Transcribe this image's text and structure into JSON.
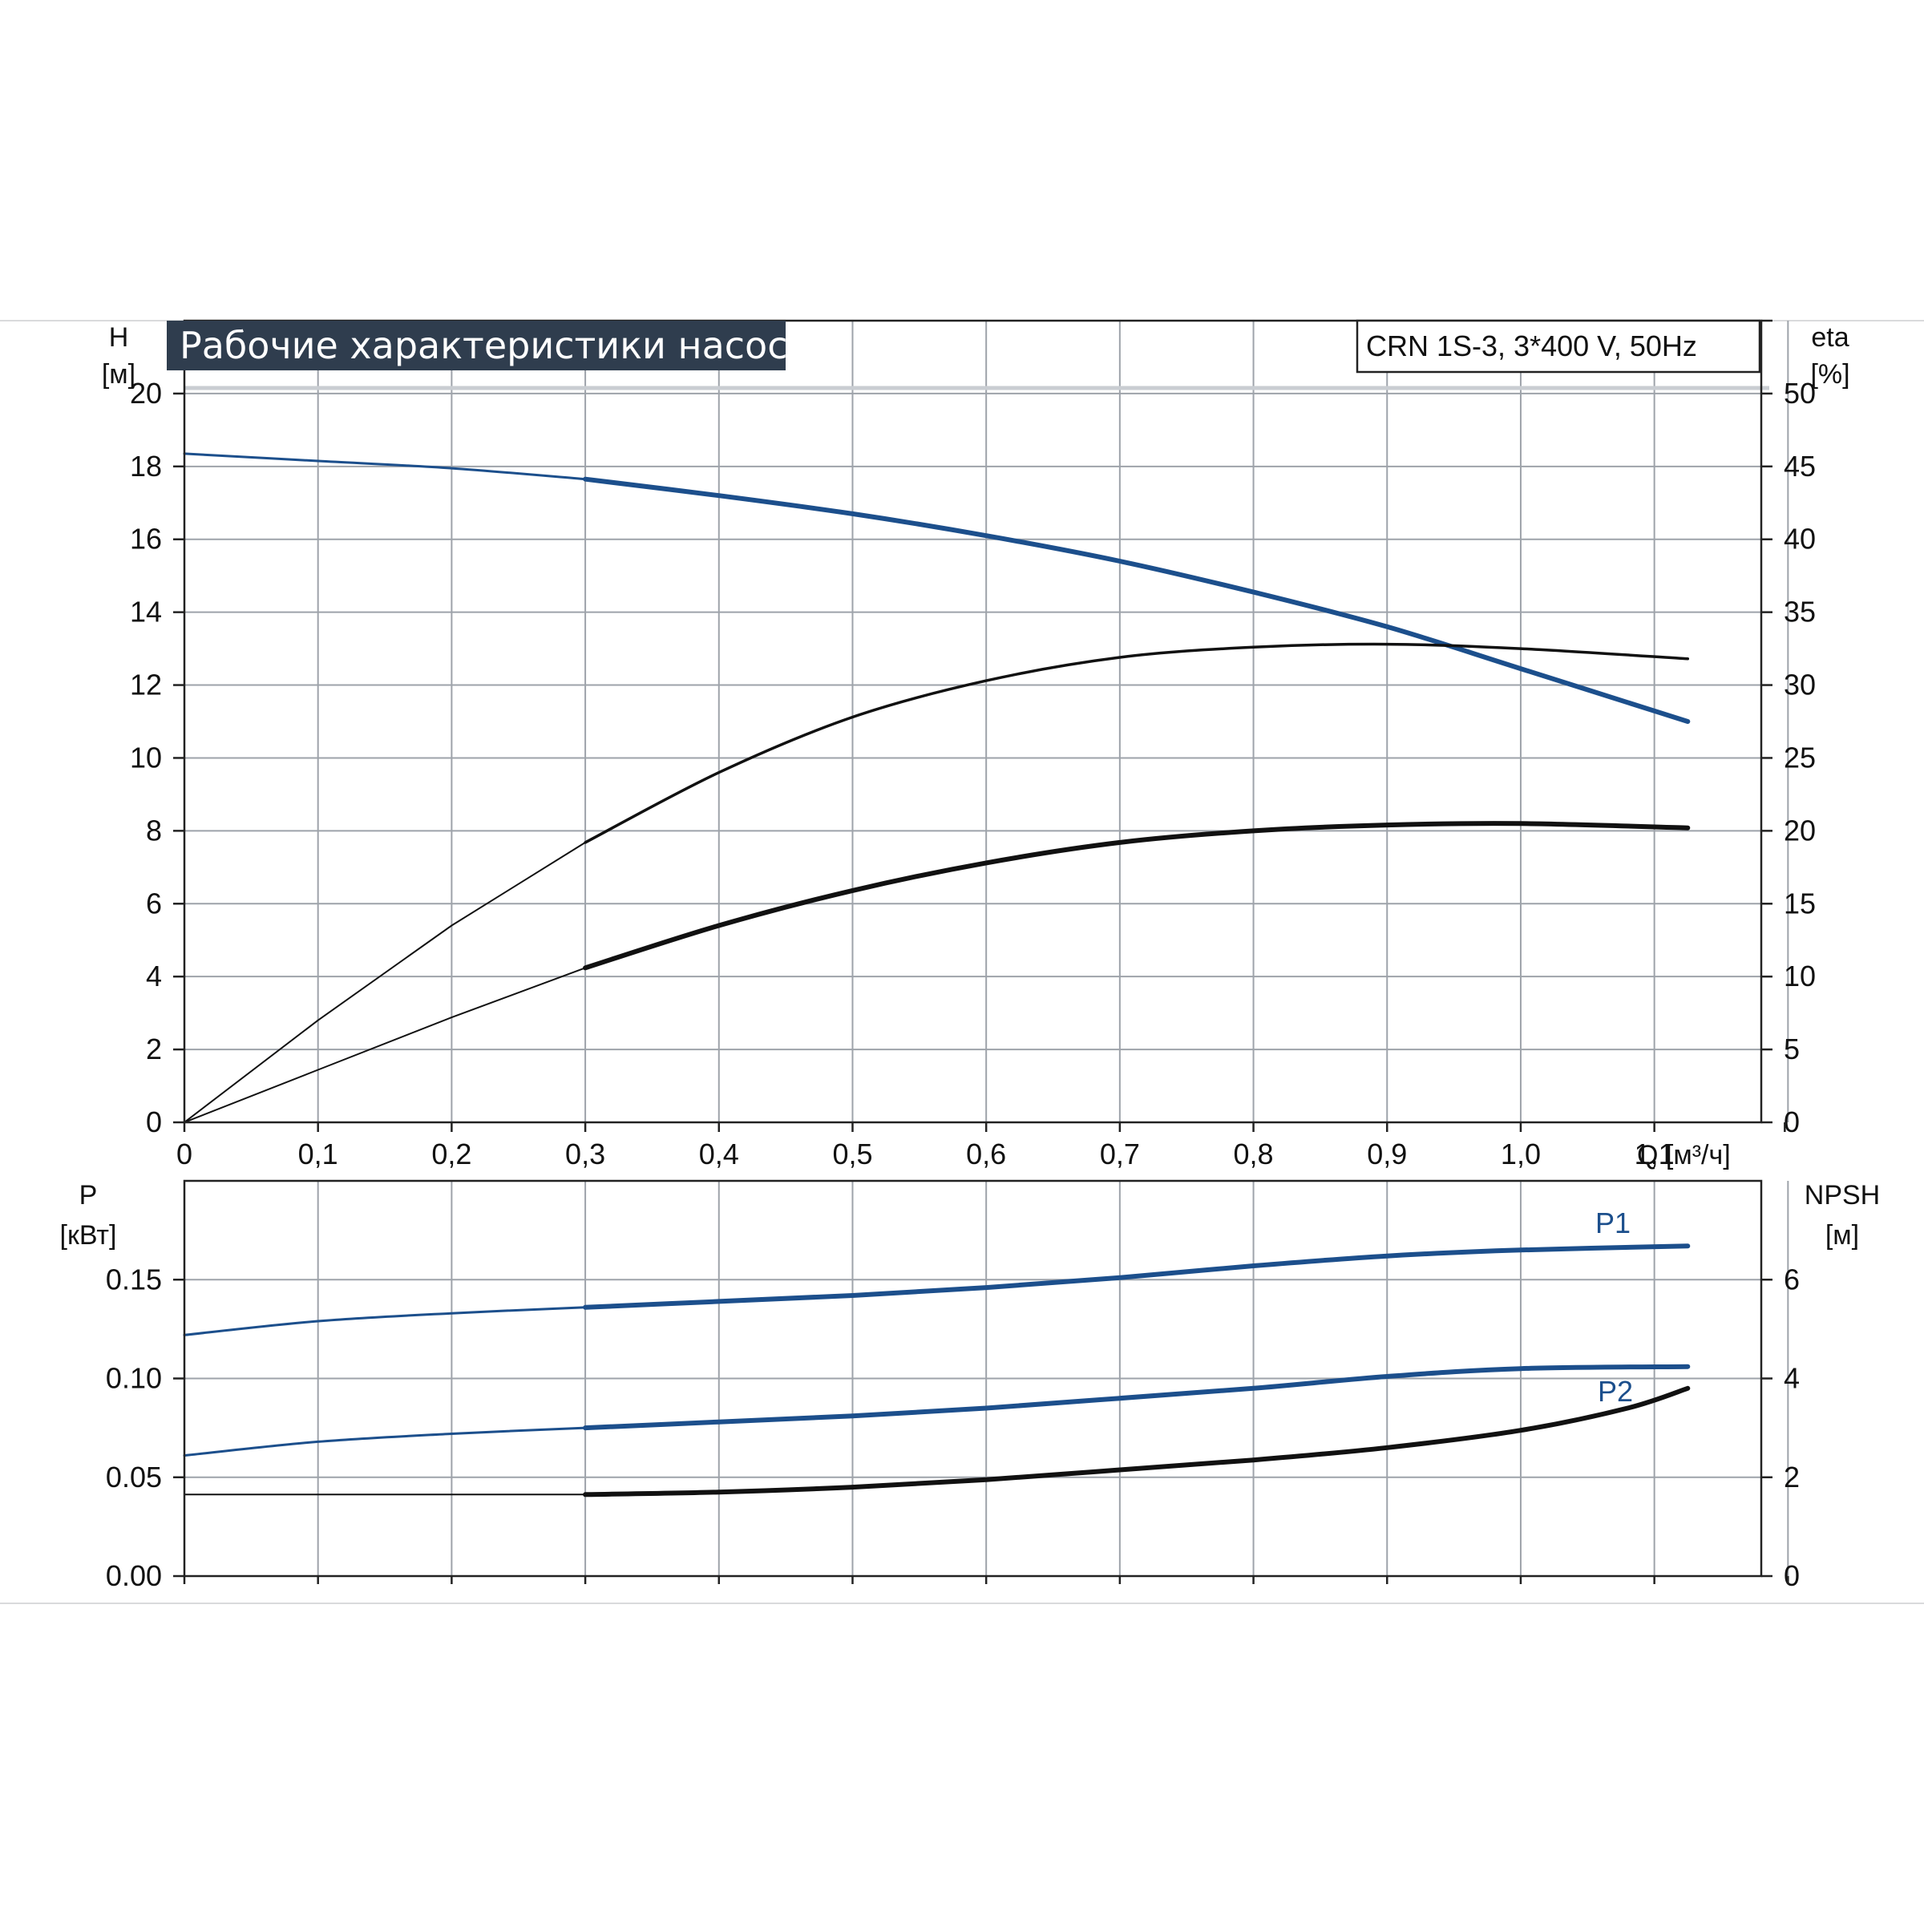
{
  "title": "Рабочие характеристики насоса",
  "model": "CRN 1S-3, 3*400 V, 50Hz",
  "chart_data": [
    {
      "type": "line",
      "x_label": "Q [м³/ч]",
      "y_label": [
        "H",
        "[м]"
      ],
      "y2_label": [
        "eta",
        "[%]"
      ],
      "x_range": [
        0,
        1.18
      ],
      "y_range": [
        0,
        22
      ],
      "y2_range": [
        0,
        55
      ],
      "x_ticks": [
        "0",
        "0,1",
        "0,2",
        "0,3",
        "0,4",
        "0,5",
        "0,6",
        "0,7",
        "0,8",
        "0,9",
        "1,0",
        "1,1"
      ],
      "y_ticks": [
        "0",
        "2",
        "4",
        "6",
        "8",
        "10",
        "12",
        "14",
        "16",
        "18",
        "20"
      ],
      "y2_ticks": [
        "0",
        "5",
        "10",
        "15",
        "20",
        "25",
        "30",
        "35",
        "40",
        "45",
        "50"
      ],
      "series": [
        {
          "axis": "left",
          "color": "#1c4f8c",
          "points": [
            [
              0,
              18.35
            ],
            [
              0.1,
              18.15
            ],
            [
              0.2,
              17.95
            ],
            [
              0.3,
              17.65
            ],
            [
              0.4,
              17.2
            ],
            [
              0.5,
              16.7
            ],
            [
              0.6,
              16.1
            ],
            [
              0.7,
              15.4
            ],
            [
              0.8,
              14.55
            ],
            [
              0.9,
              13.6
            ],
            [
              1.0,
              12.45
            ],
            [
              1.125,
              11.0
            ]
          ]
        },
        {
          "axis": "right",
          "color": "#111111",
          "points": [
            [
              0,
              0
            ],
            [
              0.1,
              7.0
            ],
            [
              0.2,
              13.5
            ],
            [
              0.3,
              19.2
            ],
            [
              0.4,
              24.0
            ],
            [
              0.5,
              27.8
            ],
            [
              0.6,
              30.3
            ],
            [
              0.7,
              31.9
            ],
            [
              0.8,
              32.6
            ],
            [
              0.9,
              32.8
            ],
            [
              1.0,
              32.5
            ],
            [
              1.125,
              31.8
            ]
          ]
        },
        {
          "axis": "right",
          "color": "#111111",
          "points": [
            [
              0,
              0
            ],
            [
              0.1,
              3.6
            ],
            [
              0.2,
              7.2
            ],
            [
              0.3,
              10.6
            ],
            [
              0.4,
              13.5
            ],
            [
              0.5,
              15.9
            ],
            [
              0.6,
              17.8
            ],
            [
              0.7,
              19.2
            ],
            [
              0.8,
              20.0
            ],
            [
              0.9,
              20.4
            ],
            [
              1.0,
              20.5
            ],
            [
              1.125,
              20.2
            ]
          ]
        }
      ]
    },
    {
      "type": "line",
      "y_label": [
        "P",
        "[кВт]"
      ],
      "y2_label": [
        "NPSH",
        "[м]"
      ],
      "x_range": [
        0,
        1.18
      ],
      "y_range": [
        0,
        0.2
      ],
      "y2_range": [
        0,
        8
      ],
      "y_ticks": [
        "0.00",
        "0.05",
        "0.10",
        "0.15"
      ],
      "y2_ticks": [
        "0",
        "2",
        "4",
        "6"
      ],
      "series": [
        {
          "name": "P1",
          "axis": "left",
          "color": "#1c4f8c",
          "points": [
            [
              0,
              0.122
            ],
            [
              0.1,
              0.129
            ],
            [
              0.2,
              0.133
            ],
            [
              0.3,
              0.136
            ],
            [
              0.4,
              0.139
            ],
            [
              0.5,
              0.142
            ],
            [
              0.6,
              0.146
            ],
            [
              0.7,
              0.151
            ],
            [
              0.8,
              0.157
            ],
            [
              0.9,
              0.162
            ],
            [
              1.0,
              0.165
            ],
            [
              1.125,
              0.167
            ]
          ]
        },
        {
          "name": "P2",
          "axis": "left",
          "color": "#1c4f8c",
          "points": [
            [
              0,
              0.061
            ],
            [
              0.1,
              0.068
            ],
            [
              0.2,
              0.072
            ],
            [
              0.3,
              0.075
            ],
            [
              0.4,
              0.078
            ],
            [
              0.5,
              0.081
            ],
            [
              0.6,
              0.085
            ],
            [
              0.7,
              0.09
            ],
            [
              0.8,
              0.095
            ],
            [
              0.9,
              0.101
            ],
            [
              1.0,
              0.105
            ],
            [
              1.125,
              0.106
            ]
          ]
        },
        {
          "axis": "right",
          "color": "#111111",
          "points": [
            [
              0,
              1.65
            ],
            [
              0.1,
              1.65
            ],
            [
              0.2,
              1.65
            ],
            [
              0.3,
              1.65
            ],
            [
              0.4,
              1.7
            ],
            [
              0.5,
              1.8
            ],
            [
              0.6,
              1.95
            ],
            [
              0.7,
              2.15
            ],
            [
              0.8,
              2.35
            ],
            [
              0.9,
              2.6
            ],
            [
              1.0,
              2.95
            ],
            [
              1.08,
              3.4
            ],
            [
              1.125,
              3.8
            ]
          ]
        }
      ]
    }
  ]
}
